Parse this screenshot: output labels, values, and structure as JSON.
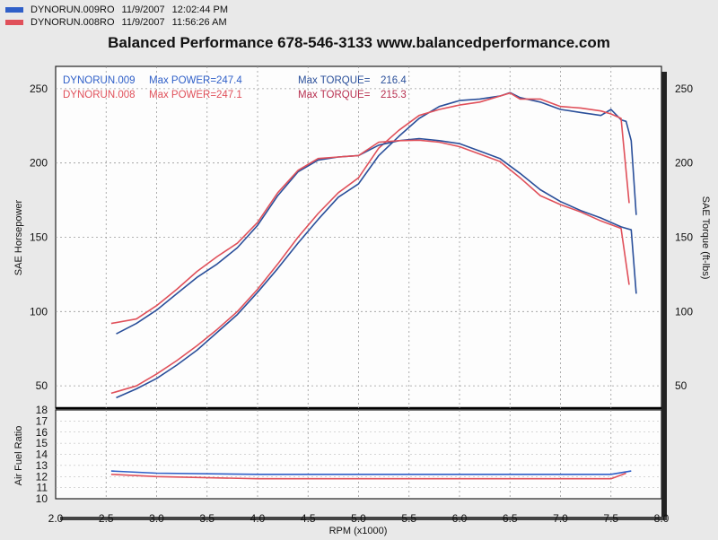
{
  "header": {
    "runs": [
      {
        "name": "DYNORUN.009RO",
        "date": "11/9/2007",
        "time": "12:02:44 PM",
        "color": "#2f5fc8"
      },
      {
        "name": "DYNORUN.008RO",
        "date": "11/9/2007",
        "time": "11:56:26 AM",
        "color": "#e0505a"
      }
    ]
  },
  "title": "Balanced Performance 678-546-3133 www.balancedperformance.com",
  "chart_data": [
    {
      "type": "line",
      "xlabel": "RPM (x1000)",
      "ylabel": "SAE Horsepower",
      "ylabel_right": "SAE Torque (ft-lbs)",
      "xlim": [
        2.0,
        8.0
      ],
      "ylim": [
        35,
        265
      ],
      "x_ticks": [
        "2.0",
        "2.5",
        "3.0",
        "3.5",
        "4.0",
        "4.5",
        "5.0",
        "5.5",
        "6.0",
        "6.5",
        "7.0",
        "7.5",
        "8.0"
      ],
      "y_ticks": [
        "50",
        "100",
        "150",
        "200",
        "250"
      ],
      "grid": true,
      "annotations": [
        {
          "run": "DYNORUN.009",
          "power_label": "Max POWER=",
          "power": "247.4",
          "torque_label": "Max TORQUE=",
          "torque": "216.4",
          "color": "#2f5fc8"
        },
        {
          "run": "DYNORUN.008",
          "power_label": "Max POWER=",
          "power": "247.1",
          "torque_label": "Max TORQUE=",
          "torque": "215.3",
          "color": "#e0505a"
        }
      ],
      "series": [
        {
          "name": "DYNORUN.009 Power",
          "color": "#2a4f9a",
          "x": [
            2.6,
            2.8,
            3.0,
            3.2,
            3.4,
            3.6,
            3.8,
            4.0,
            4.2,
            4.4,
            4.6,
            4.8,
            5.0,
            5.2,
            5.4,
            5.6,
            5.8,
            6.0,
            6.2,
            6.4,
            6.5,
            6.6,
            6.8,
            7.0,
            7.2,
            7.4,
            7.5,
            7.6,
            7.65,
            7.7,
            7.75
          ],
          "y": [
            42,
            48,
            55,
            64,
            74,
            86,
            98,
            113,
            129,
            146,
            162,
            177,
            186,
            205,
            218,
            230,
            238,
            242,
            243,
            245,
            247.4,
            244,
            241,
            236,
            234,
            232,
            236,
            229,
            228,
            215,
            165
          ]
        },
        {
          "name": "DYNORUN.008 Power",
          "color": "#e0505a",
          "x": [
            2.55,
            2.8,
            3.0,
            3.2,
            3.4,
            3.6,
            3.8,
            4.0,
            4.2,
            4.4,
            4.6,
            4.8,
            5.0,
            5.2,
            5.4,
            5.6,
            5.8,
            6.0,
            6.2,
            6.4,
            6.5,
            6.6,
            6.8,
            7.0,
            7.2,
            7.4,
            7.5,
            7.6,
            7.68
          ],
          "y": [
            45,
            50,
            58,
            67,
            77,
            88,
            100,
            115,
            132,
            150,
            166,
            180,
            190,
            210,
            222,
            232,
            236,
            239,
            241,
            245,
            247.1,
            243,
            243,
            238,
            237,
            235,
            233,
            230,
            173
          ]
        },
        {
          "name": "DYNORUN.009 Torque",
          "color": "#2a4f9a",
          "x": [
            2.6,
            2.8,
            3.0,
            3.2,
            3.4,
            3.6,
            3.8,
            4.0,
            4.2,
            4.4,
            4.6,
            4.8,
            5.0,
            5.2,
            5.4,
            5.6,
            5.8,
            6.0,
            6.2,
            6.4,
            6.6,
            6.8,
            7.0,
            7.2,
            7.4,
            7.6,
            7.7,
            7.75
          ],
          "y": [
            85,
            92,
            101,
            112,
            123,
            132,
            143,
            158,
            178,
            194,
            202,
            204,
            205,
            212,
            215,
            216.4,
            215,
            213,
            208,
            203,
            193,
            182,
            174,
            168,
            163,
            157,
            155,
            112
          ]
        },
        {
          "name": "DYNORUN.008 Torque",
          "color": "#e0505a",
          "x": [
            2.55,
            2.8,
            3.0,
            3.2,
            3.4,
            3.6,
            3.8,
            4.0,
            4.2,
            4.4,
            4.6,
            4.8,
            5.0,
            5.2,
            5.4,
            5.6,
            5.8,
            6.0,
            6.2,
            6.4,
            6.6,
            6.8,
            7.0,
            7.2,
            7.4,
            7.6,
            7.68
          ],
          "y": [
            92,
            95,
            104,
            115,
            127,
            137,
            146,
            160,
            180,
            195,
            203,
            204,
            205,
            214,
            215,
            215.3,
            214,
            211,
            206,
            201,
            190,
            178,
            172,
            167,
            161,
            156,
            118
          ]
        }
      ]
    },
    {
      "type": "line",
      "xlabel": "RPM (x1000)",
      "ylabel": "Air Fuel Ratio",
      "xlim": [
        2.0,
        8.0
      ],
      "ylim": [
        10,
        18
      ],
      "y_ticks": [
        "10",
        "11",
        "12",
        "13",
        "14",
        "15",
        "16",
        "17",
        "18"
      ],
      "grid": true,
      "series": [
        {
          "name": "DYNORUN.009 AFR",
          "color": "#2f5fc8",
          "x": [
            2.55,
            3.0,
            4.0,
            5.0,
            6.0,
            7.0,
            7.5,
            7.7
          ],
          "y": [
            12.5,
            12.3,
            12.2,
            12.2,
            12.2,
            12.2,
            12.2,
            12.5
          ]
        },
        {
          "name": "DYNORUN.008 AFR",
          "color": "#e0505a",
          "x": [
            2.55,
            3.0,
            4.0,
            5.0,
            6.0,
            7.0,
            7.5,
            7.65
          ],
          "y": [
            12.2,
            12.0,
            11.8,
            11.8,
            11.8,
            11.8,
            11.8,
            12.3
          ]
        }
      ]
    }
  ]
}
